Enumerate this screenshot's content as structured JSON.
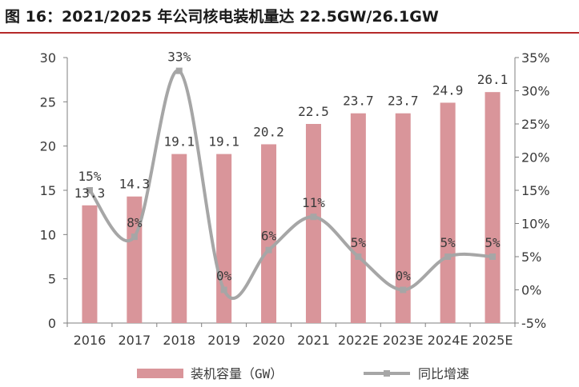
{
  "title": "图 16：2021/2025 年公司核电装机量达 22.5GW/26.1GW",
  "chart_data": {
    "type": "bar",
    "categories": [
      "2016",
      "2017",
      "2018",
      "2019",
      "2020",
      "2021",
      "2022E",
      "2023E",
      "2024E",
      "2025E"
    ],
    "series": [
      {
        "name": "装机容量（GW）",
        "type": "bar",
        "axis": "left",
        "color": "#d9959a",
        "values": [
          13.3,
          14.3,
          19.1,
          19.1,
          20.2,
          22.5,
          23.7,
          23.7,
          24.9,
          26.1
        ],
        "labels": [
          "13.3",
          "14.3",
          "19.1",
          "19.1",
          "20.2",
          "22.5",
          "23.7",
          "23.7",
          "24.9",
          "26.1"
        ]
      },
      {
        "name": "同比增速",
        "type": "line",
        "axis": "right",
        "color": "#a6a6a6",
        "values": [
          15,
          8,
          33,
          0,
          6,
          11,
          5,
          0,
          5,
          5
        ],
        "labels": [
          "15%",
          "8%",
          "33%",
          "0%",
          "6%",
          "11%",
          "5%",
          "0%",
          "5%",
          "5%"
        ]
      }
    ],
    "y_left": {
      "min": 0,
      "max": 30,
      "ticks": [
        0,
        5,
        10,
        15,
        20,
        25,
        30
      ]
    },
    "y_right": {
      "min": -5,
      "max": 35,
      "ticks": [
        "-5%",
        "0%",
        "5%",
        "10%",
        "15%",
        "20%",
        "25%",
        "30%",
        "35%"
      ]
    },
    "legend_position": "bottom",
    "grid": false
  }
}
